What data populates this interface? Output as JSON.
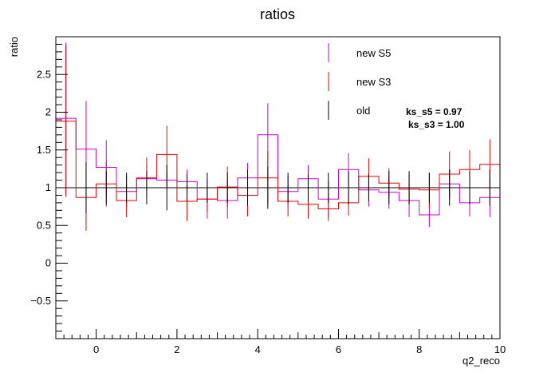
{
  "chart_data": {
    "type": "line",
    "title": "ratios",
    "xlabel": "q2_reco",
    "ylabel": "ratio",
    "xlim": [
      -1,
      10
    ],
    "ylim": [
      -1,
      3
    ],
    "xticks": [
      0,
      2,
      4,
      6,
      8,
      10
    ],
    "yticks": [
      -0.5,
      0,
      0.5,
      1,
      1.5,
      2,
      2.5
    ],
    "xtick_labels": [
      "0",
      "2",
      "4",
      "6",
      "8",
      "10"
    ],
    "ytick_labels": [
      "−0.5",
      "0",
      "0.5",
      "1",
      "1.5",
      "2",
      "2.5"
    ],
    "reference_line": 1,
    "bin_edges": [
      -1,
      -0.5,
      0,
      0.5,
      1,
      1.5,
      2,
      2.5,
      3,
      3.5,
      4,
      4.5,
      5,
      5.5,
      6,
      6.5,
      7,
      7.5,
      8,
      8.5,
      9,
      9.5,
      10
    ],
    "legend_position": "top-right",
    "series": [
      {
        "name": "new S5",
        "color": "#cc00cc",
        "values": [
          1.92,
          1.51,
          1.27,
          0.95,
          1.12,
          1.1,
          1.08,
          0.85,
          0.83,
          1.13,
          1.7,
          0.95,
          1.12,
          0.85,
          1.24,
          0.97,
          0.94,
          0.83,
          0.64,
          1.05,
          0.8,
          0.87
        ],
        "err": [
          1.0,
          0.64,
          0.36,
          0.22,
          0.17,
          0.1,
          0.16,
          0.26,
          0.24,
          0.2,
          0.42,
          0.2,
          0.18,
          0.24,
          0.22,
          0.22,
          0.22,
          0.22,
          0.16,
          0.2,
          0.18,
          0.26
        ]
      },
      {
        "name": "new S3",
        "color": "#ee0000",
        "values": [
          1.88,
          0.87,
          1.05,
          0.83,
          1.13,
          1.44,
          0.82,
          0.85,
          1.01,
          0.9,
          1.13,
          0.82,
          0.78,
          0.72,
          0.8,
          1.15,
          1.06,
          0.98,
          0.97,
          1.18,
          1.24,
          1.31
        ],
        "err": [
          1.0,
          0.44,
          0.3,
          0.22,
          0.27,
          0.38,
          0.26,
          0.17,
          0.27,
          0.28,
          0.35,
          0.2,
          0.19,
          0.16,
          0.17,
          0.24,
          0.2,
          0.2,
          0.23,
          0.3,
          0.26,
          0.33
        ]
      },
      {
        "name": "old",
        "color": "#000000",
        "values": [
          1.9,
          1.0,
          1.0,
          1.0,
          1.0,
          1.0,
          1.0,
          1.0,
          1.0,
          1.0,
          1.0,
          1.0,
          1.0,
          1.0,
          1.0,
          1.0,
          1.0,
          1.0,
          1.0,
          1.0,
          1.0,
          1.0
        ],
        "err": [
          0.0,
          0.34,
          0.22,
          0.2,
          0.22,
          0.3,
          0.18,
          0.2,
          0.2,
          0.24,
          0.28,
          0.2,
          0.18,
          0.2,
          0.22,
          0.18,
          0.22,
          0.22,
          0.2,
          0.24,
          0.22,
          0.24
        ]
      }
    ],
    "annotations": [
      "ks_s5 = 0.97",
      "ks_s3 = 1.00"
    ]
  }
}
